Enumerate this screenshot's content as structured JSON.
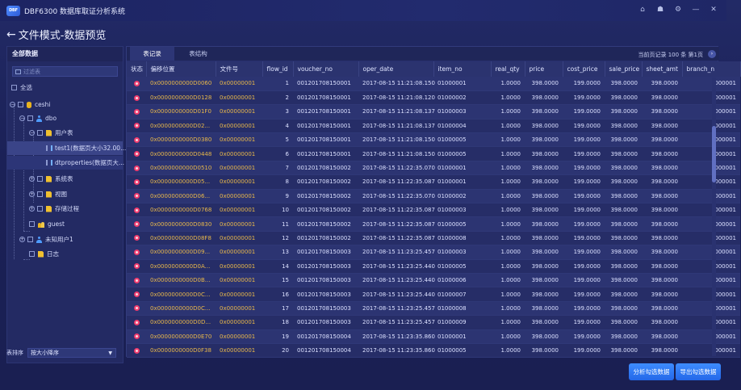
{
  "app": {
    "logo_text": "DBF",
    "title": "DBF6300 数据库取证分析系统"
  },
  "page": {
    "title": "文件模式-数据预览"
  },
  "left_panel": {
    "header": "全部数据",
    "search_placeholder": "过滤表",
    "tree": [
      {
        "label": "全选"
      },
      {
        "label": "ceshi"
      },
      {
        "label": "dbo"
      },
      {
        "label": "用户表"
      },
      {
        "label": "test1(数据页大小32.00..."
      },
      {
        "label": "dtproperties(数据页大..."
      },
      {
        "label": "系统表"
      },
      {
        "label": "视图"
      },
      {
        "label": "存储过程"
      },
      {
        "label": "guest"
      },
      {
        "label": "未知用户1"
      },
      {
        "label": "日志"
      }
    ],
    "sort_label": "表排序",
    "sort_value": "按大小降序"
  },
  "tabs": [
    {
      "label": "表记录"
    },
    {
      "label": "表结构"
    }
  ],
  "page_info": "当前页记录 100 条  第1页",
  "columns": [
    "状态",
    "偏移位置",
    "文件号",
    "flow_id",
    "voucher_no",
    "oper_date",
    "item_no",
    "real_qty",
    "price",
    "cost_price",
    "sale_price",
    "sheet_amt",
    "branch_n"
  ],
  "rows": [
    [
      "0x0000000000D0060",
      "0x00000001",
      "1",
      "001201708150001",
      "2017-08-15 11:21:08.150",
      "01000001",
      "1.0000",
      "398.0000",
      "199.0000",
      "398.0000",
      "398.0000",
      "000001"
    ],
    [
      "0x0000000000D0128",
      "0x00000001",
      "2",
      "001201708150001",
      "2017-08-15 11:21:08.120",
      "01000002",
      "1.0000",
      "398.0000",
      "199.0000",
      "398.0000",
      "398.0000",
      "000001"
    ],
    [
      "0x0000000000D01F0",
      "0x00000001",
      "3",
      "001201708150001",
      "2017-08-15 11:21:08.137",
      "01000003",
      "1.0000",
      "398.0000",
      "199.0000",
      "398.0000",
      "398.0000",
      "000001"
    ],
    [
      "0x0000000000D02...",
      "0x00000001",
      "4",
      "001201708150001",
      "2017-08-15 11:21:08.137",
      "01000004",
      "1.0000",
      "398.0000",
      "199.0000",
      "398.0000",
      "398.0000",
      "000001"
    ],
    [
      "0x0000000000D0380",
      "0x00000001",
      "5",
      "001201708150001",
      "2017-08-15 11:21:08.150",
      "01000005",
      "1.0000",
      "398.0000",
      "199.0000",
      "398.0000",
      "398.0000",
      "000001"
    ],
    [
      "0x0000000000D0448",
      "0x00000001",
      "6",
      "001201708150001",
      "2017-08-15 11:21:08.150",
      "01000005",
      "1.0000",
      "398.0000",
      "199.0000",
      "398.0000",
      "398.0000",
      "000001"
    ],
    [
      "0x0000000000D0510",
      "0x00000001",
      "7",
      "001201708150002",
      "2017-08-15 11:22:35.070",
      "01000001",
      "1.0000",
      "398.0000",
      "199.0000",
      "398.0000",
      "398.0000",
      "000001"
    ],
    [
      "0x0000000000D05...",
      "0x00000001",
      "8",
      "001201708150002",
      "2017-08-15 11:22:35.087",
      "01000001",
      "1.0000",
      "398.0000",
      "199.0000",
      "398.0000",
      "398.0000",
      "000001"
    ],
    [
      "0x0000000000D06...",
      "0x00000001",
      "9",
      "001201708150002",
      "2017-08-15 11:22:35.070",
      "01000002",
      "1.0000",
      "398.0000",
      "199.0000",
      "398.0000",
      "398.0000",
      "000001"
    ],
    [
      "0x0000000000D0768",
      "0x00000001",
      "10",
      "001201708150002",
      "2017-08-15 11:22:35.087",
      "01000003",
      "1.0000",
      "398.0000",
      "199.0000",
      "398.0000",
      "398.0000",
      "000001"
    ],
    [
      "0x0000000000D0830",
      "0x00000001",
      "11",
      "001201708150002",
      "2017-08-15 11:22:35.087",
      "01000005",
      "1.0000",
      "398.0000",
      "199.0000",
      "398.0000",
      "398.0000",
      "000001"
    ],
    [
      "0x0000000000D08F8",
      "0x00000001",
      "12",
      "001201708150002",
      "2017-08-15 11:22:35.087",
      "01000008",
      "1.0000",
      "398.0000",
      "199.0000",
      "398.0000",
      "398.0000",
      "000001"
    ],
    [
      "0x0000000000D09...",
      "0x00000001",
      "13",
      "001201708150003",
      "2017-08-15 11:23:25.457",
      "01000003",
      "1.0000",
      "398.0000",
      "199.0000",
      "398.0000",
      "398.0000",
      "000001"
    ],
    [
      "0x0000000000D0A...",
      "0x00000001",
      "14",
      "001201708150003",
      "2017-08-15 11:23:25.440",
      "01000005",
      "1.0000",
      "398.0000",
      "199.0000",
      "398.0000",
      "398.0000",
      "000001"
    ],
    [
      "0x0000000000D0B...",
      "0x00000001",
      "15",
      "001201708150003",
      "2017-08-15 11:23:25.440",
      "01000006",
      "1.0000",
      "398.0000",
      "199.0000",
      "398.0000",
      "398.0000",
      "000001"
    ],
    [
      "0x0000000000D0C...",
      "0x00000001",
      "16",
      "001201708150003",
      "2017-08-15 11:23:25.440",
      "01000007",
      "1.0000",
      "398.0000",
      "199.0000",
      "398.0000",
      "398.0000",
      "000001"
    ],
    [
      "0x0000000000D0C...",
      "0x00000001",
      "17",
      "001201708150003",
      "2017-08-15 11:23:25.457",
      "01000008",
      "1.0000",
      "398.0000",
      "199.0000",
      "398.0000",
      "398.0000",
      "000001"
    ],
    [
      "0x0000000000D0D...",
      "0x00000001",
      "18",
      "001201708150003",
      "2017-08-15 11:23:25.457",
      "01000009",
      "1.0000",
      "398.0000",
      "199.0000",
      "398.0000",
      "398.0000",
      "000001"
    ],
    [
      "0x0000000000D0E70",
      "0x00000001",
      "19",
      "001201708150004",
      "2017-08-15 11:23:35.860",
      "01000001",
      "1.0000",
      "398.0000",
      "199.0000",
      "398.0000",
      "398.0000",
      "000001"
    ],
    [
      "0x0000000000D0F38",
      "0x00000001",
      "20",
      "001201708150004",
      "2017-08-15 11:23:35.860",
      "01000005",
      "1.0000",
      "398.0000",
      "199.0000",
      "398.0000",
      "398.0000",
      "000001"
    ]
  ],
  "buttons": {
    "analyze": "分析勾选数据",
    "export": "导出勾选数据"
  },
  "colors": {
    "accent": "#3d8cff",
    "status_error": "#f03c6e",
    "offset_text": "#e9b84a"
  }
}
